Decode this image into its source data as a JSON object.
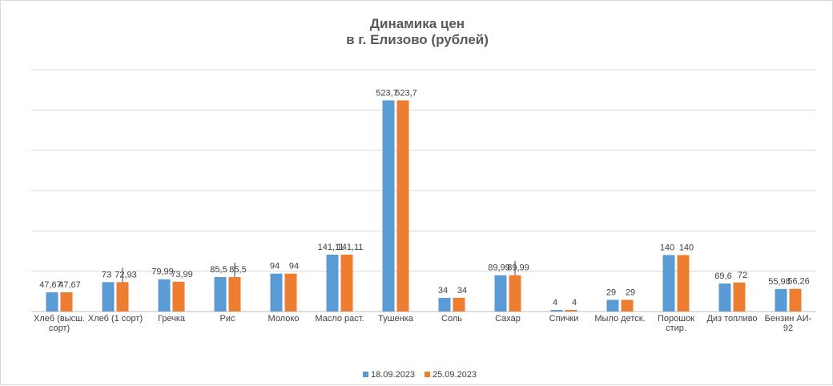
{
  "chart_data": {
    "type": "bar",
    "title": [
      "Динамика цен",
      "в г. Елизово (рублей)"
    ],
    "categories": [
      [
        "Хлеб (высш.",
        "сорт)"
      ],
      [
        "Хлеб (1 сорт)"
      ],
      [
        "Гречка"
      ],
      [
        "Рис"
      ],
      [
        "Молоко"
      ],
      [
        "Масло раст."
      ],
      [
        "Тушенка"
      ],
      [
        "Соль"
      ],
      [
        "Сахар"
      ],
      [
        "Спички"
      ],
      [
        "Мыло детск."
      ],
      [
        "Порошок",
        "стир."
      ],
      [
        "Диз топливо"
      ],
      [
        "Бензин АИ-",
        "92"
      ]
    ],
    "series": [
      {
        "name": "18.09.2023",
        "color": "#5b9bd5",
        "values": [
          47.67,
          73,
          79.99,
          85.5,
          94,
          141.11,
          523.7,
          34,
          89.99,
          4,
          29,
          140,
          69.6,
          55.98
        ],
        "labels": [
          "47,67",
          "73",
          "79,99",
          "85,5",
          "94",
          "141,11",
          "523,7",
          "34",
          "89,99",
          "4",
          "29",
          "140",
          "69,6",
          "55,98"
        ]
      },
      {
        "name": "25.09.2023",
        "color": "#ed7d31",
        "values": [
          47.67,
          72.93,
          73.99,
          85.5,
          94,
          141.11,
          523.7,
          34,
          89.99,
          4,
          29,
          140,
          72,
          56.26
        ],
        "labels": [
          "47,67",
          "72,93",
          "73,99",
          "85,5",
          "94",
          "141,11",
          "523,7",
          "34",
          "89,99",
          "4",
          "29",
          "140",
          "72",
          "56,26"
        ]
      }
    ],
    "ylim": [
      0,
      600
    ],
    "gridlines": [
      100,
      200,
      300,
      400,
      500,
      600
    ],
    "grid": true,
    "y_axis_labels_shown": false,
    "legend": "bottom",
    "leader_lines": [
      1,
      3,
      8
    ],
    "colors": {
      "gridline": "#d9d9d9",
      "axis": "#bfbfbf",
      "text": "#404040",
      "title": "#595959"
    }
  }
}
